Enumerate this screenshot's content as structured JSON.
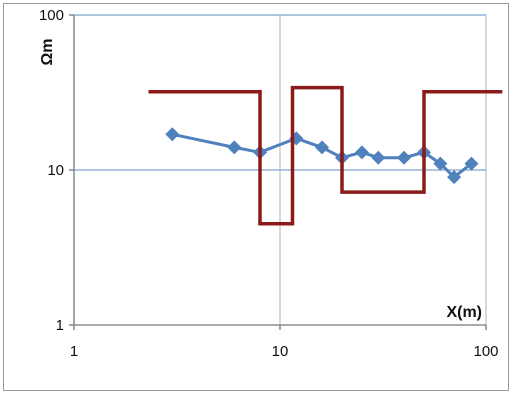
{
  "chart_data": {
    "type": "line",
    "xscale": "log",
    "yscale": "log",
    "xlim": [
      1,
      100
    ],
    "ylim": [
      1,
      100
    ],
    "xlabel": "X(m)",
    "ylabel": "Ωm",
    "x_ticks": [
      "1",
      "10",
      "100"
    ],
    "y_ticks": [
      "1",
      "10",
      "100"
    ],
    "grid": true,
    "series": [
      {
        "style": "markers-line",
        "color": "#4f81bd",
        "x": [
          3,
          6,
          8,
          12,
          16,
          20,
          25,
          30,
          40,
          50,
          60,
          70,
          85
        ],
        "y": [
          17,
          14,
          13,
          16,
          14,
          12,
          13,
          12,
          12,
          13,
          11,
          9,
          11
        ]
      },
      {
        "style": "step",
        "color": "#8b1a1a",
        "x": [
          2.3,
          8,
          8,
          11.5,
          11.5,
          20,
          20,
          50,
          50,
          120
        ],
        "y": [
          32,
          32,
          4.5,
          4.5,
          34,
          34,
          7.2,
          7.2,
          32,
          32
        ]
      }
    ]
  }
}
